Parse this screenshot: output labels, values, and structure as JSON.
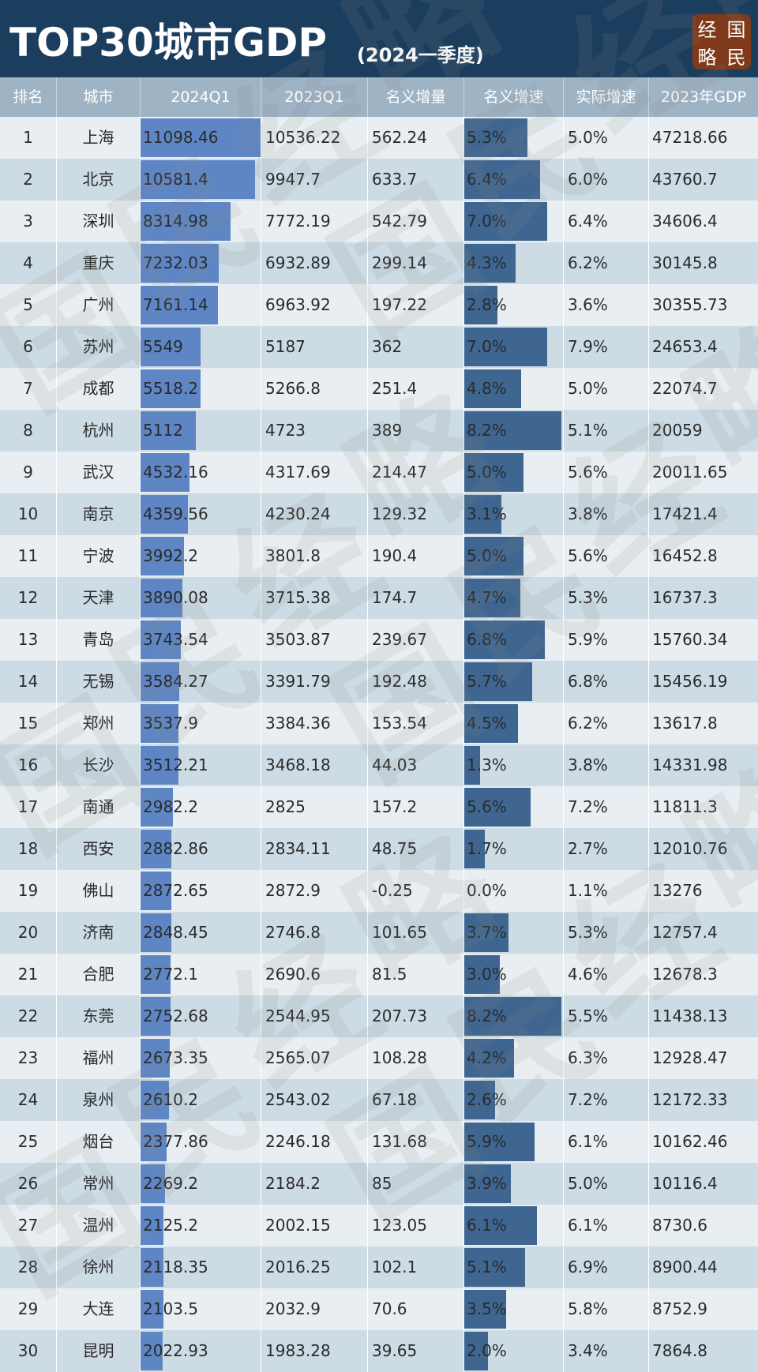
{
  "header": {
    "title": "TOP30城市GDP",
    "subtitle": "(2024一季度)",
    "seal": [
      "经",
      "国",
      "略",
      "民"
    ],
    "bg_color": "#1c3e5e",
    "seal_color": "#7e3a1a"
  },
  "watermark": {
    "text": [
      "国",
      "民",
      "经",
      "略"
    ]
  },
  "chart_data": {
    "type": "table",
    "columns": [
      "排名",
      "城市",
      "2024Q1",
      "2023Q1",
      "名义增量",
      "名义增速",
      "实际增速",
      "2023年GDP"
    ],
    "bar_columns": [
      "2024Q1",
      "名义增速"
    ],
    "bar_colors": [
      "#5e86c4",
      "#3e6690"
    ],
    "rows": [
      [
        "1",
        "上海",
        "11098.46",
        "10536.22",
        "562.24",
        "5.3%",
        "5.0%",
        "47218.66"
      ],
      [
        "2",
        "北京",
        "10581.4",
        "9947.7",
        "633.7",
        "6.4%",
        "6.0%",
        "43760.7"
      ],
      [
        "3",
        "深圳",
        "8314.98",
        "7772.19",
        "542.79",
        "7.0%",
        "6.4%",
        "34606.4"
      ],
      [
        "4",
        "重庆",
        "7232.03",
        "6932.89",
        "299.14",
        "4.3%",
        "6.2%",
        "30145.8"
      ],
      [
        "5",
        "广州",
        "7161.14",
        "6963.92",
        "197.22",
        "2.8%",
        "3.6%",
        "30355.73"
      ],
      [
        "6",
        "苏州",
        "5549",
        "5187",
        "362",
        "7.0%",
        "7.9%",
        "24653.4"
      ],
      [
        "7",
        "成都",
        "5518.2",
        "5266.8",
        "251.4",
        "4.8%",
        "5.0%",
        "22074.7"
      ],
      [
        "8",
        "杭州",
        "5112",
        "4723",
        "389",
        "8.2%",
        "5.1%",
        "20059"
      ],
      [
        "9",
        "武汉",
        "4532.16",
        "4317.69",
        "214.47",
        "5.0%",
        "5.6%",
        "20011.65"
      ],
      [
        "10",
        "南京",
        "4359.56",
        "4230.24",
        "129.32",
        "3.1%",
        "3.8%",
        "17421.4"
      ],
      [
        "11",
        "宁波",
        "3992.2",
        "3801.8",
        "190.4",
        "5.0%",
        "5.6%",
        "16452.8"
      ],
      [
        "12",
        "天津",
        "3890.08",
        "3715.38",
        "174.7",
        "4.7%",
        "5.3%",
        "16737.3"
      ],
      [
        "13",
        "青岛",
        "3743.54",
        "3503.87",
        "239.67",
        "6.8%",
        "5.9%",
        "15760.34"
      ],
      [
        "14",
        "无锡",
        "3584.27",
        "3391.79",
        "192.48",
        "5.7%",
        "6.8%",
        "15456.19"
      ],
      [
        "15",
        "郑州",
        "3537.9",
        "3384.36",
        "153.54",
        "4.5%",
        "6.2%",
        "13617.8"
      ],
      [
        "16",
        "长沙",
        "3512.21",
        "3468.18",
        "44.03",
        "1.3%",
        "3.8%",
        "14331.98"
      ],
      [
        "17",
        "南通",
        "2982.2",
        "2825",
        "157.2",
        "5.6%",
        "7.2%",
        "11811.3"
      ],
      [
        "18",
        "西安",
        "2882.86",
        "2834.11",
        "48.75",
        "1.7%",
        "2.7%",
        "12010.76"
      ],
      [
        "19",
        "佛山",
        "2872.65",
        "2872.9",
        "-0.25",
        "0.0%",
        "1.1%",
        "13276"
      ],
      [
        "20",
        "济南",
        "2848.45",
        "2746.8",
        "101.65",
        "3.7%",
        "5.3%",
        "12757.4"
      ],
      [
        "21",
        "合肥",
        "2772.1",
        "2690.6",
        "81.5",
        "3.0%",
        "4.6%",
        "12678.3"
      ],
      [
        "22",
        "东莞",
        "2752.68",
        "2544.95",
        "207.73",
        "8.2%",
        "5.5%",
        "11438.13"
      ],
      [
        "23",
        "福州",
        "2673.35",
        "2565.07",
        "108.28",
        "4.2%",
        "6.3%",
        "12928.47"
      ],
      [
        "24",
        "泉州",
        "2610.2",
        "2543.02",
        "67.18",
        "2.6%",
        "7.2%",
        "12172.33"
      ],
      [
        "25",
        "烟台",
        "2377.86",
        "2246.18",
        "131.68",
        "5.9%",
        "6.1%",
        "10162.46"
      ],
      [
        "26",
        "常州",
        "2269.2",
        "2184.2",
        "85",
        "3.9%",
        "5.0%",
        "10116.4"
      ],
      [
        "27",
        "温州",
        "2125.2",
        "2002.15",
        "123.05",
        "6.1%",
        "6.1%",
        "8730.6"
      ],
      [
        "28",
        "徐州",
        "2118.35",
        "2016.25",
        "102.1",
        "5.1%",
        "6.9%",
        "8900.44"
      ],
      [
        "29",
        "大连",
        "2103.5",
        "2032.9",
        "70.6",
        "3.5%",
        "5.8%",
        "8752.9"
      ],
      [
        "30",
        "昆明",
        "2022.93",
        "1983.28",
        "39.65",
        "2.0%",
        "3.4%",
        "7864.8"
      ]
    ]
  }
}
